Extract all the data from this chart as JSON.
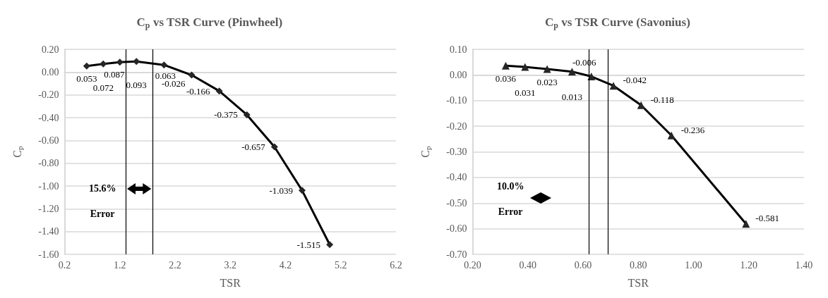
{
  "chart_data": [
    {
      "type": "line",
      "title": "C$_{p}$ vs TSR Curve (Pinwheel)",
      "xlabel": "TSR",
      "ylabel": "C$_{p}$",
      "x": [
        0.6,
        0.9,
        1.2,
        1.5,
        2.0,
        2.5,
        3.0,
        3.5,
        4.0,
        4.5,
        5.0
      ],
      "series": [
        {
          "color": "#262626",
          "values": [
            0.053,
            0.072,
            0.087,
            0.093,
            0.063,
            -0.026,
            -0.166,
            -0.375,
            -0.657,
            -1.039,
            -1.515
          ]
        }
      ],
      "data_labels": true,
      "marker": "diamond",
      "line_style": "solid",
      "grid": "y",
      "xlim": [
        0.2,
        6.2
      ],
      "xticks": [
        0.2,
        1.2,
        2.2,
        3.2,
        4.2,
        5.2,
        6.2
      ],
      "ylim": [
        -1.6,
        0.2
      ],
      "yticks": [
        {
          "value": -1.6,
          "label": "-1.60"
        },
        {
          "value": -1.4,
          "label": "-1.40"
        },
        {
          "value": -1.2,
          "label": "-1.20"
        },
        {
          "value": -1.0,
          "label": "-1.00"
        },
        {
          "value": -0.8,
          "label": "-0.80"
        },
        {
          "value": -0.6,
          "label": "-0.60"
        },
        {
          "value": -0.4,
          "label": "-0.40"
        },
        {
          "value": -0.2,
          "label": "-0.20"
        },
        {
          "value": 0,
          "label": "0.00"
        },
        {
          "value": 0.2,
          "label": "0.20"
        }
      ],
      "ref_lines": [
        {
          "axis": "x",
          "value": 1.31,
          "color": "#000000"
        },
        {
          "axis": "x",
          "value": 1.8,
          "color": "#000000"
        }
      ],
      "annotations": [
        "15.6%",
        "Error"
      ]
    },
    {
      "type": "line",
      "title": "C$_{p}$ vs TSR Curve (Savonius)",
      "xlabel": "TSR",
      "ylabel": "C$_{p}$",
      "x": [
        0.32,
        0.39,
        0.47,
        0.56,
        0.63,
        0.71,
        0.81,
        0.92,
        1.19
      ],
      "series": [
        {
          "color": "#262626",
          "values": [
            0.036,
            0.031,
            0.023,
            0.013,
            -0.006,
            -0.042,
            -0.118,
            -0.236,
            -0.581
          ]
        }
      ],
      "data_labels": true,
      "marker": "triangle",
      "line_style": "solid",
      "grid": "y",
      "xlim": [
        0.2,
        1.4
      ],
      "xticks": [
        {
          "value": 0.2,
          "label": "0.20"
        },
        {
          "value": 0.4,
          "label": "0.40"
        },
        {
          "value": 0.6,
          "label": "0.60"
        },
        {
          "value": 0.8,
          "label": "0.80"
        },
        {
          "value": 1.0,
          "label": "1.00"
        },
        {
          "value": 1.2,
          "label": "1.20"
        },
        {
          "value": 1.4,
          "label": "1.40"
        }
      ],
      "ylim": [
        -0.7,
        0.1
      ],
      "yticks": [
        {
          "value": -0.7,
          "label": "-0.70"
        },
        {
          "value": -0.6,
          "label": "-0.60"
        },
        {
          "value": -0.5,
          "label": "-0.50"
        },
        {
          "value": -0.4,
          "label": "-0.40"
        },
        {
          "value": -0.3,
          "label": "-0.30"
        },
        {
          "value": -0.2,
          "label": "-0.20"
        },
        {
          "value": -0.1,
          "label": "-0.10"
        },
        {
          "value": 0,
          "label": "0.00"
        },
        {
          "value": 0.1,
          "label": "0.10"
        }
      ],
      "ref_lines": [
        {
          "axis": "x",
          "value": 0.62,
          "color": "#000000"
        },
        {
          "axis": "x",
          "value": 0.69,
          "color": "#000000"
        }
      ],
      "annotations": [
        "10.0%",
        "Error"
      ]
    }
  ]
}
